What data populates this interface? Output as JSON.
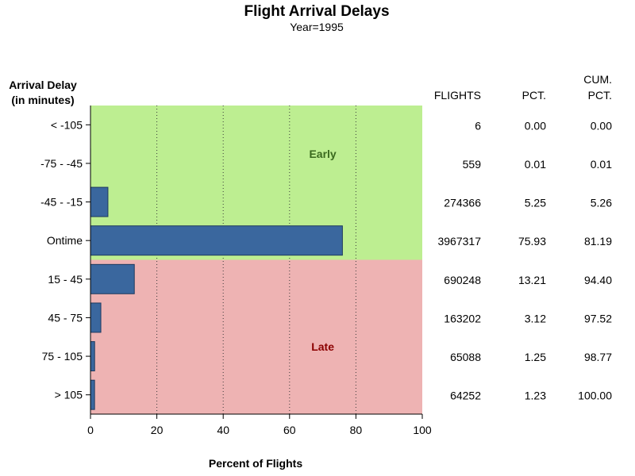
{
  "chart_data": {
    "type": "bar",
    "orientation": "horizontal",
    "title": "Flight Arrival Delays",
    "subtitle": "Year=1995",
    "ylabel_lines": [
      "Arrival Delay",
      "(in minutes)"
    ],
    "xlabel": "Percent of Flights",
    "xlim": [
      0,
      100
    ],
    "xticks": [
      0,
      20,
      40,
      60,
      80,
      100
    ],
    "grid": "vertical dotted",
    "categories": [
      "< -105",
      "-75 - -45",
      "-45 - -15",
      "Ontime",
      "15 - 45",
      "45 - 75",
      "75 - 105",
      "> 105"
    ],
    "values": [
      0.0,
      0.01,
      5.25,
      75.93,
      13.21,
      3.12,
      1.25,
      1.23
    ],
    "regions": [
      {
        "label": "Early",
        "categories": [
          "< -105",
          "-75 - -45",
          "-45 - -15",
          "Ontime"
        ],
        "color": "#bdee91",
        "label_color": "#3a6a1e"
      },
      {
        "label": "Late",
        "categories": [
          "15 - 45",
          "45 - 75",
          "75 - 105",
          "> 105"
        ],
        "color": "#eeb3b3",
        "label_color": "#8b0000"
      }
    ],
    "bar_color": "#3a679e",
    "table": {
      "headers": [
        {
          "lines": [
            "FLIGHTS"
          ]
        },
        {
          "lines": [
            "PCT."
          ]
        },
        {
          "lines": [
            "CUM.",
            "PCT."
          ]
        }
      ],
      "rows": [
        [
          "6",
          "0.00",
          "0.00"
        ],
        [
          "559",
          "0.01",
          "0.01"
        ],
        [
          "274366",
          "5.25",
          "5.26"
        ],
        [
          "3967317",
          "75.93",
          "81.19"
        ],
        [
          "690248",
          "13.21",
          "94.40"
        ],
        [
          "163202",
          "3.12",
          "97.52"
        ],
        [
          "65088",
          "1.25",
          "98.77"
        ],
        [
          "64252",
          "1.23",
          "100.00"
        ]
      ]
    }
  }
}
